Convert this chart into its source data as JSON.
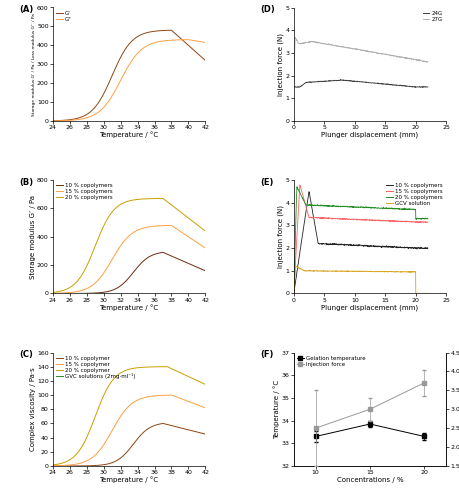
{
  "panel_A": {
    "title": "(A)",
    "xlabel": "Temperature / °C",
    "ylabel": "Storage modulus G’ / Pa / Loss modulus G’’ / Pa",
    "xlim": [
      24,
      42
    ],
    "ylim": [
      0,
      600
    ],
    "yticks": [
      0,
      100,
      200,
      300,
      400,
      500,
      600
    ],
    "G_prime_color": "#8B4513",
    "G_dprime_color": "#FFA040",
    "legend": [
      "G’",
      "G’’"
    ]
  },
  "panel_B": {
    "title": "(B)",
    "xlabel": "Temperature / °C",
    "ylabel": "Storage modulus G’ / Pa",
    "xlim": [
      24,
      42
    ],
    "ylim": [
      0,
      800
    ],
    "yticks": [
      0,
      200,
      400,
      600,
      800
    ],
    "colors": [
      "#6B2D0E",
      "#FFA040",
      "#C8A000"
    ],
    "legend": [
      "10 % copolymers",
      "15 % copolymers",
      "20 % copolymers"
    ]
  },
  "panel_C": {
    "title": "(C)",
    "xlabel": "Temperature / °C",
    "ylabel": "Complex viscosity / Pa·s",
    "xlim": [
      24,
      42
    ],
    "ylim": [
      0,
      160
    ],
    "yticks": [
      0,
      20,
      40,
      60,
      80,
      100,
      120,
      140,
      160
    ],
    "colors": [
      "#8B4513",
      "#FFA040",
      "#C8A000",
      "#228B22"
    ],
    "legend": [
      "10 % copolymer",
      "15 % copolymer",
      "20 % copolymer",
      "GVC solutions (2mg·ml⁻¹)"
    ]
  },
  "panel_D": {
    "title": "(D)",
    "xlabel": "Plunger displacement (mm)",
    "ylabel": "Injection force (N)",
    "xlim": [
      0,
      25
    ],
    "ylim": [
      0,
      5
    ],
    "yticks": [
      0,
      1,
      2,
      3,
      4,
      5
    ],
    "xticks": [
      0,
      5,
      10,
      15,
      20,
      25
    ],
    "colors": [
      "#404040",
      "#B0B0B0"
    ],
    "legend": [
      "24G",
      "27G"
    ]
  },
  "panel_E": {
    "title": "(E)",
    "xlabel": "Plunger displacement (mm)",
    "ylabel": "Injection force (N)",
    "xlim": [
      0,
      25
    ],
    "ylim": [
      0,
      5
    ],
    "yticks": [
      0,
      1,
      2,
      3,
      4,
      5
    ],
    "xticks": [
      0,
      5,
      10,
      15,
      20,
      25
    ],
    "colors": [
      "#222222",
      "#FF6060",
      "#228B22",
      "#DAA520"
    ],
    "legend": [
      "10 % copolymers",
      "15 % copolymers",
      "20 % copolymers",
      "GCV solution"
    ]
  },
  "panel_F": {
    "title": "(F)",
    "xlabel": "Concentrations / %",
    "ylabel_left": "Temperature / °C",
    "ylabel_right": "Injection force /N",
    "xlim": [
      8,
      22
    ],
    "ylim_left": [
      32,
      37
    ],
    "ylim_right": [
      1.5,
      4.5
    ],
    "xticks": [
      10,
      15,
      20
    ],
    "yticks_left": [
      32,
      33,
      34,
      35,
      36,
      37
    ],
    "yticks_right": [
      1.5,
      2.0,
      2.5,
      3.0,
      3.5,
      4.0,
      4.5
    ],
    "gel_temp": [
      33.3,
      33.85,
      33.3
    ],
    "gel_temp_err": [
      0.25,
      0.15,
      0.15
    ],
    "inj_force": [
      2.5,
      3.0,
      3.7
    ],
    "inj_force_err": [
      1.0,
      0.3,
      0.35
    ],
    "gel_color": "#000000",
    "inj_color": "#999999",
    "conc": [
      10,
      15,
      20
    ]
  }
}
